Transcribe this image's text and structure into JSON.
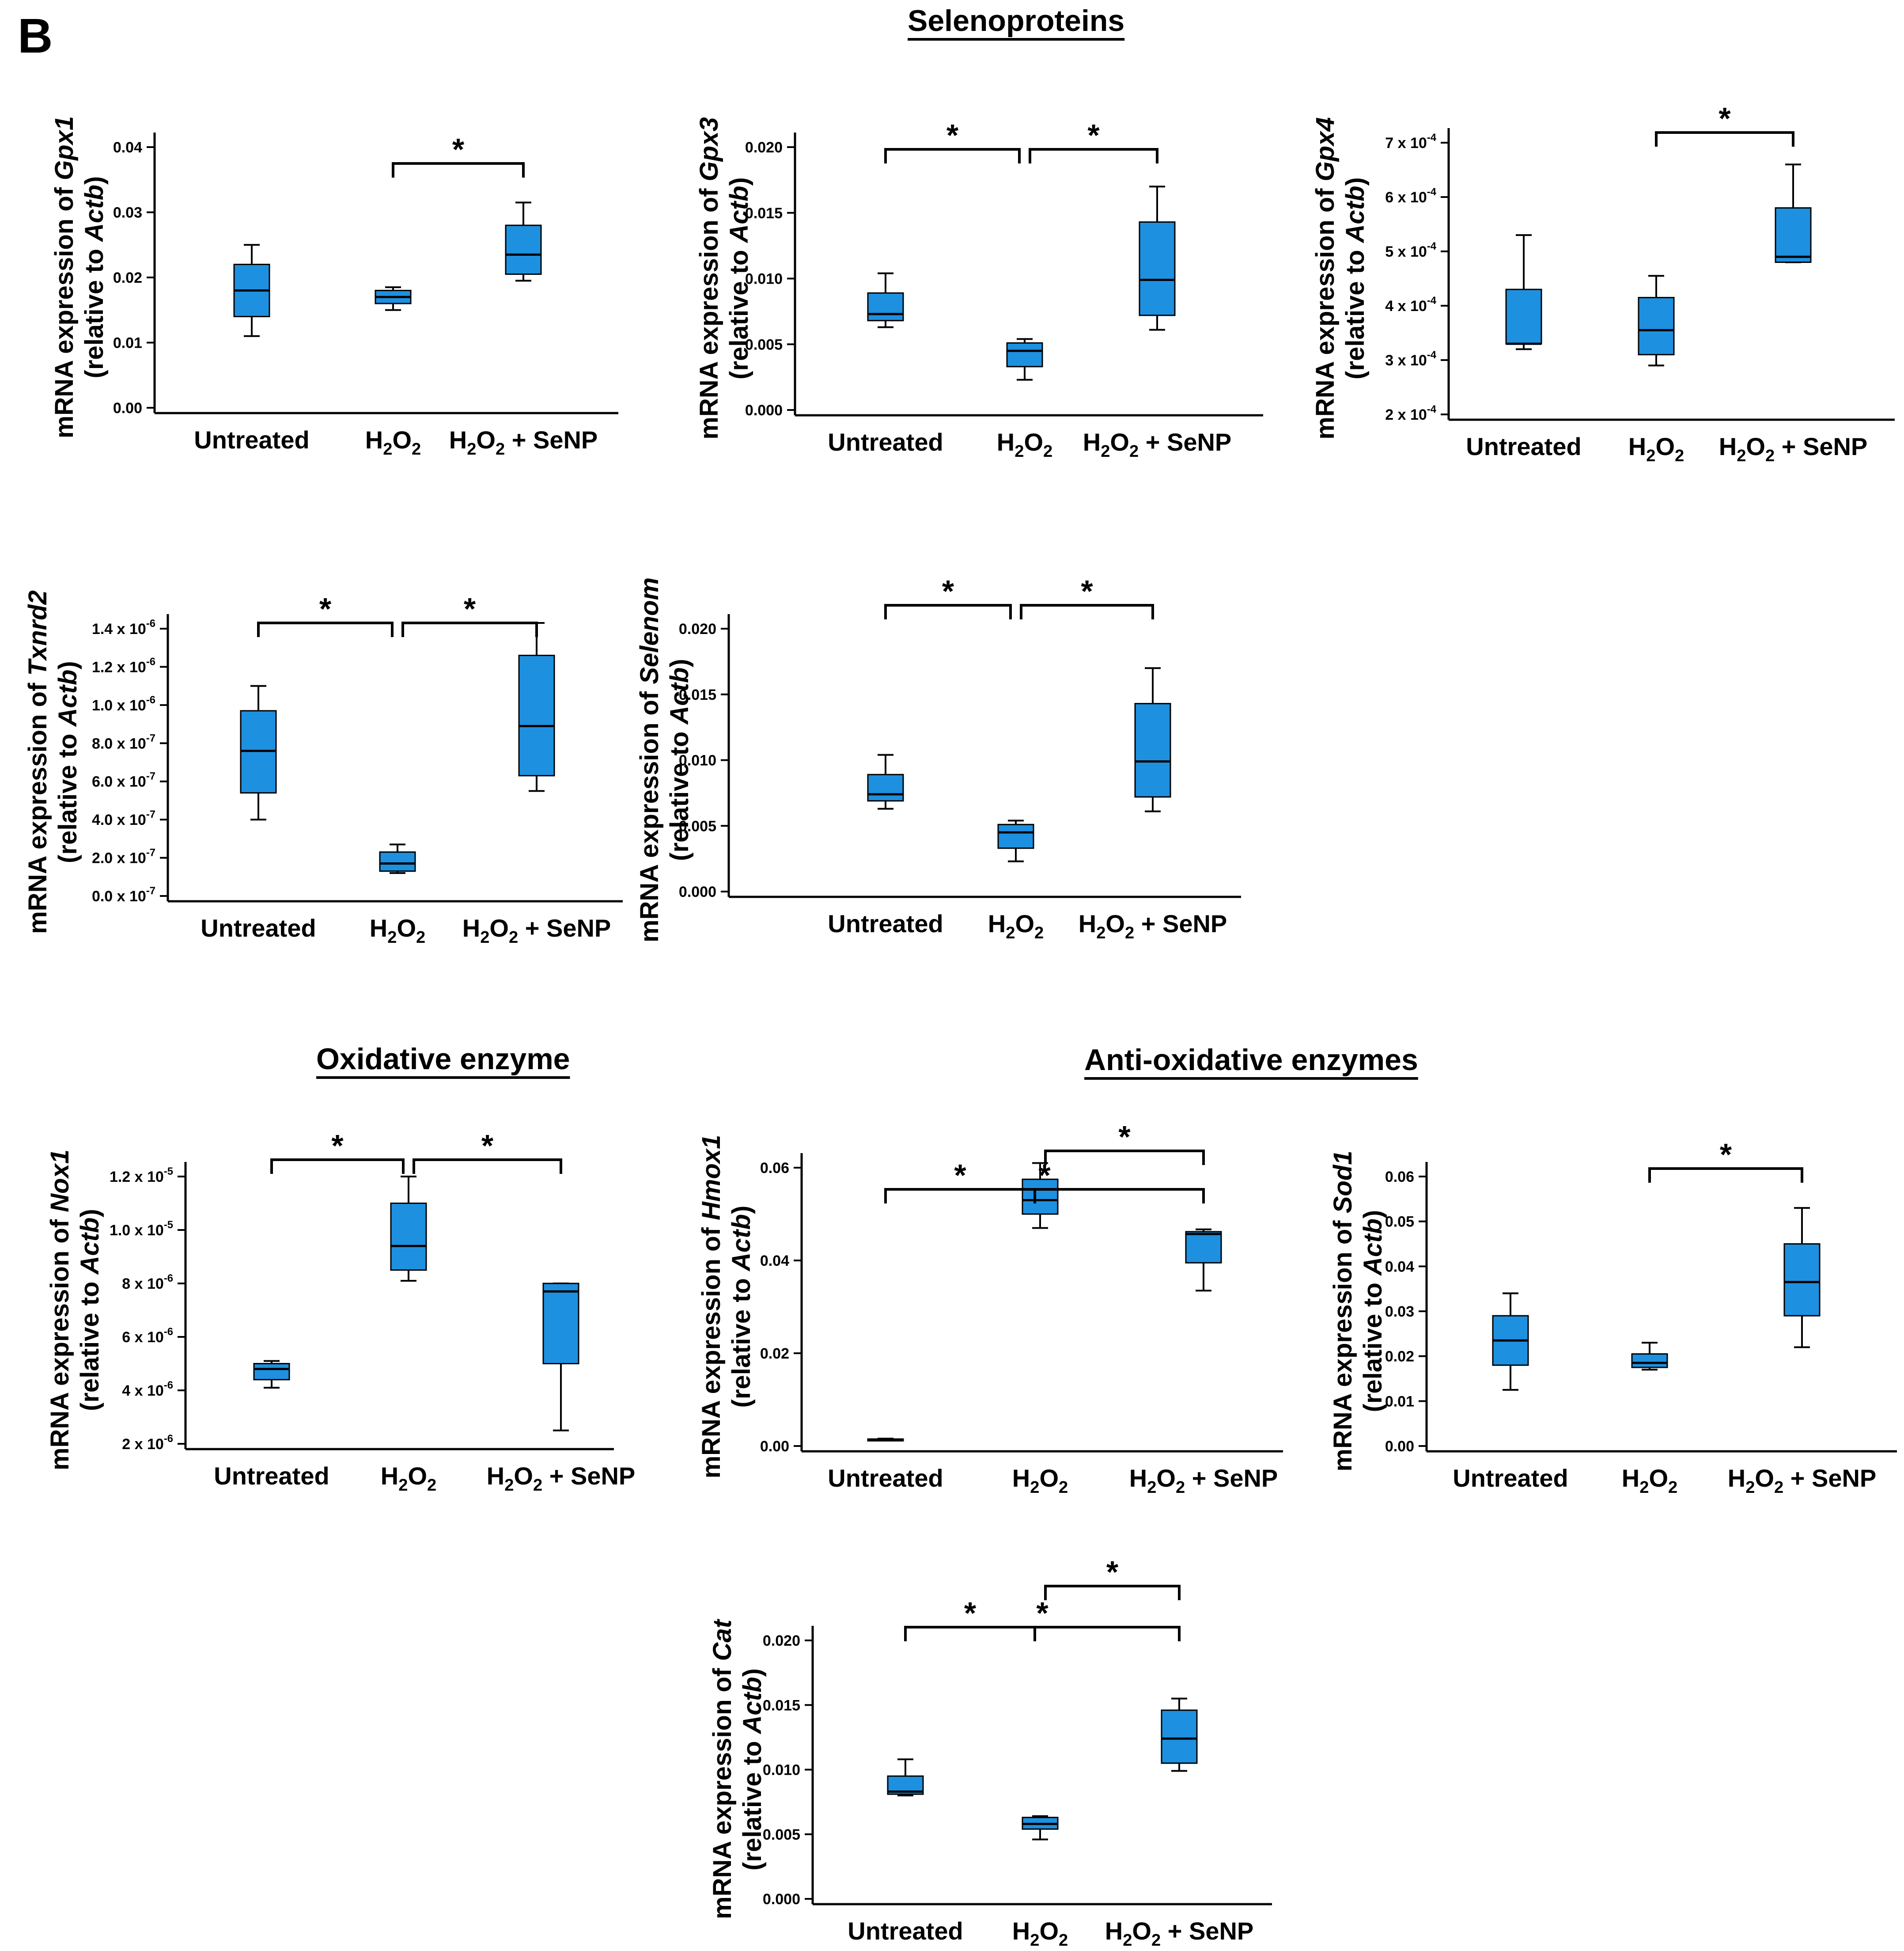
{
  "panel_label": "B",
  "sections": {
    "selenoproteins": "Selenoproteins",
    "oxidative": "Oxidative enzyme",
    "anti_oxidative": "Anti-oxidative enzymes"
  },
  "common": {
    "ylabel_prefix": "mRNA expression of",
    "ylabel_line2_prefix": "(relative to",
    "ylabel_line2_ref": "Actb",
    "ylabel_line2_suffix": ")",
    "star": "*",
    "cat_untreated": "Untreated",
    "cat_h2o2": "H2O2",
    "cat_h2o2_senp": "H2O2 + SeNP"
  },
  "colors": {
    "box_fill": "#1E90E0",
    "line": "#000000"
  },
  "chart_data": [
    {
      "id": "gpx1",
      "type": "box",
      "gene": "Gpx1",
      "categories": [
        "Untreated",
        "H2O2",
        "H2O2 + SeNP"
      ],
      "ylim": [
        0,
        0.04
      ],
      "yticks": [
        {
          "v": 0.0,
          "label": "0.00"
        },
        {
          "v": 0.01,
          "label": "0.01"
        },
        {
          "v": 0.02,
          "label": "0.02"
        },
        {
          "v": 0.03,
          "label": "0.03"
        },
        {
          "v": 0.04,
          "label": "0.04"
        }
      ],
      "boxes": [
        {
          "min": 0.011,
          "q1": 0.014,
          "median": 0.018,
          "q3": 0.022,
          "max": 0.025
        },
        {
          "min": 0.015,
          "q1": 0.016,
          "median": 0.017,
          "q3": 0.018,
          "max": 0.0185
        },
        {
          "min": 0.0195,
          "q1": 0.0205,
          "median": 0.0235,
          "q3": 0.028,
          "max": 0.0315
        }
      ],
      "significance": [
        {
          "from": 1,
          "to": 2,
          "label": "*"
        }
      ]
    },
    {
      "id": "gpx3",
      "type": "box",
      "gene": "Gpx3",
      "categories": [
        "Untreated",
        "H2O2",
        "H2O2 + SeNP"
      ],
      "ylim": [
        0,
        0.02
      ],
      "yticks": [
        {
          "v": 0.0,
          "label": "0.000"
        },
        {
          "v": 0.005,
          "label": "0.005"
        },
        {
          "v": 0.01,
          "label": "0.010"
        },
        {
          "v": 0.015,
          "label": "0.015"
        },
        {
          "v": 0.02,
          "label": "0.020"
        }
      ],
      "boxes": [
        {
          "min": 0.0063,
          "q1": 0.0068,
          "median": 0.0073,
          "q3": 0.0089,
          "max": 0.0104
        },
        {
          "min": 0.0023,
          "q1": 0.0033,
          "median": 0.0045,
          "q3": 0.0051,
          "max": 0.0054
        },
        {
          "min": 0.0061,
          "q1": 0.0072,
          "median": 0.0099,
          "q3": 0.0143,
          "max": 0.017
        }
      ],
      "significance": [
        {
          "from": 0,
          "to": 1,
          "label": "*"
        },
        {
          "from": 1,
          "to": 2,
          "label": "*"
        }
      ]
    },
    {
      "id": "gpx4",
      "type": "box",
      "gene": "Gpx4",
      "categories": [
        "Untreated",
        "H2O2",
        "H2O2 + SeNP"
      ],
      "ylim": [
        0.0002,
        0.0007
      ],
      "yticks": [
        {
          "v": 0.0002,
          "label": "2 x 10",
          "exp": "-4"
        },
        {
          "v": 0.0003,
          "label": "3 x 10",
          "exp": "-4"
        },
        {
          "v": 0.0004,
          "label": "4 x 10",
          "exp": "-4"
        },
        {
          "v": 0.0005,
          "label": "5 x 10",
          "exp": "-4"
        },
        {
          "v": 0.0006,
          "label": "6 x 10",
          "exp": "-4"
        },
        {
          "v": 0.0007,
          "label": "7 x 10",
          "exp": "-4"
        }
      ],
      "boxes": [
        {
          "min": 0.00032,
          "q1": 0.00033,
          "median": 0.00033,
          "q3": 0.00043,
          "max": 0.00053
        },
        {
          "min": 0.00029,
          "q1": 0.00031,
          "median": 0.000355,
          "q3": 0.000415,
          "max": 0.000455
        },
        {
          "min": 0.00048,
          "q1": 0.00048,
          "median": 0.00049,
          "q3": 0.00058,
          "max": 0.00066
        }
      ],
      "significance": [
        {
          "from": 1,
          "to": 2,
          "label": "*"
        }
      ]
    },
    {
      "id": "txnrd2",
      "type": "box",
      "gene": "Txnrd2",
      "categories": [
        "Untreated",
        "H2O2",
        "H2O2 + SeNP"
      ],
      "ylim": [
        0,
        1.4e-06
      ],
      "yticks": [
        {
          "v": 0,
          "label": "0.0 x 10",
          "exp": "-7"
        },
        {
          "v": 2e-07,
          "label": "2.0 x 10",
          "exp": "-7"
        },
        {
          "v": 4e-07,
          "label": "4.0 x 10",
          "exp": "-7"
        },
        {
          "v": 6e-07,
          "label": "6.0 x 10",
          "exp": "-7"
        },
        {
          "v": 8e-07,
          "label": "8.0 x 10",
          "exp": "-7"
        },
        {
          "v": 1e-06,
          "label": "1.0 x 10",
          "exp": "-6"
        },
        {
          "v": 1.2e-06,
          "label": "1.2 x 10",
          "exp": "-6"
        },
        {
          "v": 1.4e-06,
          "label": "1.4 x 10",
          "exp": "-6"
        }
      ],
      "boxes": [
        {
          "min": 4e-07,
          "q1": 5.4e-07,
          "median": 7.6e-07,
          "q3": 9.7e-07,
          "max": 1.1e-06
        },
        {
          "min": 1.2e-07,
          "q1": 1.3e-07,
          "median": 1.7e-07,
          "q3": 2.3e-07,
          "max": 2.7e-07
        },
        {
          "min": 5.5e-07,
          "q1": 6.3e-07,
          "median": 8.9e-07,
          "q3": 1.26e-06,
          "max": 1.43e-06
        }
      ],
      "significance": [
        {
          "from": 0,
          "to": 1,
          "label": "*"
        },
        {
          "from": 1,
          "to": 2,
          "label": "*"
        }
      ]
    },
    {
      "id": "selenom",
      "type": "box",
      "gene": "Selenom",
      "categories": [
        "Untreated",
        "H2O2",
        "H2O2 + SeNP"
      ],
      "ylim": [
        0,
        0.02
      ],
      "yticks": [
        {
          "v": 0.0,
          "label": "0.000"
        },
        {
          "v": 0.005,
          "label": "0.005"
        },
        {
          "v": 0.01,
          "label": "0.010"
        },
        {
          "v": 0.015,
          "label": "0.015"
        },
        {
          "v": 0.02,
          "label": "0.020"
        }
      ],
      "boxes": [
        {
          "min": 0.0063,
          "q1": 0.0069,
          "median": 0.0074,
          "q3": 0.0089,
          "max": 0.0104
        },
        {
          "min": 0.0023,
          "q1": 0.0033,
          "median": 0.0045,
          "q3": 0.0051,
          "max": 0.0054
        },
        {
          "min": 0.0061,
          "q1": 0.0072,
          "median": 0.0099,
          "q3": 0.0143,
          "max": 0.017
        }
      ],
      "significance": [
        {
          "from": 0,
          "to": 1,
          "label": "*"
        },
        {
          "from": 1,
          "to": 2,
          "label": "*"
        }
      ]
    },
    {
      "id": "nox1",
      "type": "box",
      "gene": "Nox1",
      "categories": [
        "Untreated",
        "H2O2",
        "H2O2 + SeNP"
      ],
      "ylim": [
        2e-06,
        1.2e-05
      ],
      "yticks": [
        {
          "v": 2e-06,
          "label": "2 x 10",
          "exp": "-6"
        },
        {
          "v": 4e-06,
          "label": "4 x 10",
          "exp": "-6"
        },
        {
          "v": 6e-06,
          "label": "6 x 10",
          "exp": "-6"
        },
        {
          "v": 8e-06,
          "label": "8 x 10",
          "exp": "-6"
        },
        {
          "v": 1e-05,
          "label": "1.0 x 10",
          "exp": "-5"
        },
        {
          "v": 1.2e-05,
          "label": "1.2 x 10",
          "exp": "-5"
        }
      ],
      "boxes": [
        {
          "min": 4.1e-06,
          "q1": 4.4e-06,
          "median": 4.8e-06,
          "q3": 5e-06,
          "max": 5.1e-06
        },
        {
          "min": 8.1e-06,
          "q1": 8.5e-06,
          "median": 9.4e-06,
          "q3": 1.1e-05,
          "max": 1.2e-05
        },
        {
          "min": 2.5e-06,
          "q1": 5e-06,
          "median": 7.7e-06,
          "q3": 8e-06,
          "max": 8e-06
        }
      ],
      "significance": [
        {
          "from": 0,
          "to": 1,
          "label": "*"
        },
        {
          "from": 1,
          "to": 2,
          "label": "*"
        }
      ]
    },
    {
      "id": "hmox1",
      "type": "box",
      "gene": "Hmox1",
      "categories": [
        "Untreated",
        "H2O2",
        "H2O2 + SeNP"
      ],
      "ylim": [
        0,
        0.06
      ],
      "yticks": [
        {
          "v": 0.0,
          "label": "0.00"
        },
        {
          "v": 0.02,
          "label": "0.02"
        },
        {
          "v": 0.04,
          "label": "0.04"
        },
        {
          "v": 0.06,
          "label": "0.06"
        }
      ],
      "boxes": [
        {
          "min": 0.0012,
          "q1": 0.0013,
          "median": 0.0014,
          "q3": 0.0015,
          "max": 0.0016
        },
        {
          "min": 0.047,
          "q1": 0.05,
          "median": 0.053,
          "q3": 0.0575,
          "max": 0.061
        },
        {
          "min": 0.0335,
          "q1": 0.0395,
          "median": 0.0457,
          "q3": 0.0462,
          "max": 0.0467
        }
      ],
      "significance": [
        {
          "from": 0,
          "to": 1,
          "label": "*"
        },
        {
          "from": 1,
          "to": 2,
          "label": "*"
        },
        {
          "from": 0,
          "to": 2,
          "label": "*"
        }
      ]
    },
    {
      "id": "sod1",
      "type": "box",
      "gene": "Sod1",
      "categories": [
        "Untreated",
        "H2O2",
        "H2O2 + SeNP"
      ],
      "ylim": [
        0,
        0.06
      ],
      "yticks": [
        {
          "v": 0.0,
          "label": "0.00"
        },
        {
          "v": 0.01,
          "label": "0.01"
        },
        {
          "v": 0.02,
          "label": "0.02"
        },
        {
          "v": 0.03,
          "label": "0.03"
        },
        {
          "v": 0.04,
          "label": "0.04"
        },
        {
          "v": 0.05,
          "label": "0.05"
        },
        {
          "v": 0.06,
          "label": "0.06"
        }
      ],
      "boxes": [
        {
          "min": 0.0125,
          "q1": 0.018,
          "median": 0.0235,
          "q3": 0.029,
          "max": 0.034
        },
        {
          "min": 0.017,
          "q1": 0.0175,
          "median": 0.0185,
          "q3": 0.0205,
          "max": 0.023
        },
        {
          "min": 0.022,
          "q1": 0.029,
          "median": 0.0365,
          "q3": 0.045,
          "max": 0.053
        }
      ],
      "significance": [
        {
          "from": 1,
          "to": 2,
          "label": "*"
        }
      ]
    },
    {
      "id": "cat",
      "type": "box",
      "gene": "Cat",
      "categories": [
        "Untreated",
        "H2O2",
        "H2O2 + SeNP"
      ],
      "ylim": [
        0,
        0.02
      ],
      "yticks": [
        {
          "v": 0.0,
          "label": "0.000"
        },
        {
          "v": 0.005,
          "label": "0.005"
        },
        {
          "v": 0.01,
          "label": "0.010"
        },
        {
          "v": 0.015,
          "label": "0.015"
        },
        {
          "v": 0.02,
          "label": "0.020"
        }
      ],
      "boxes": [
        {
          "min": 0.008,
          "q1": 0.0081,
          "median": 0.0083,
          "q3": 0.0095,
          "max": 0.0108
        },
        {
          "min": 0.0046,
          "q1": 0.0054,
          "median": 0.0058,
          "q3": 0.0063,
          "max": 0.0064
        },
        {
          "min": 0.0099,
          "q1": 0.0105,
          "median": 0.0124,
          "q3": 0.0146,
          "max": 0.0155
        }
      ],
      "significance": [
        {
          "from": 0,
          "to": 1,
          "label": "*"
        },
        {
          "from": 1,
          "to": 2,
          "label": "*"
        },
        {
          "from": 0,
          "to": 2,
          "label": "*"
        }
      ]
    }
  ]
}
